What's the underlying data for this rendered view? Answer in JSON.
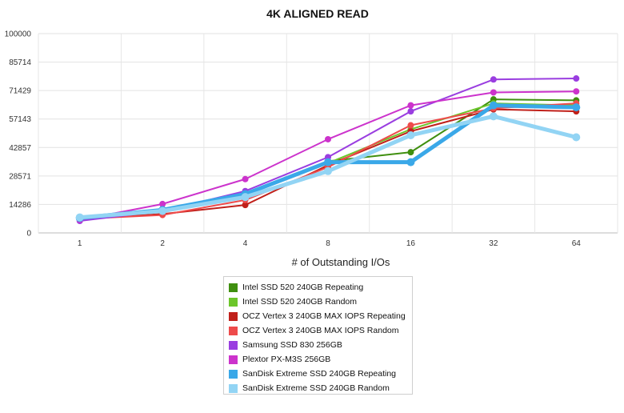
{
  "chart_data": {
    "type": "line",
    "title": "4K ALIGNED READ",
    "xlabel": "# of Outstanding I/Os",
    "ylabel": "",
    "categories": [
      "1",
      "2",
      "4",
      "8",
      "16",
      "32",
      "64"
    ],
    "yticks": [
      "0",
      "14286",
      "28571",
      "42857",
      "57143",
      "71429",
      "85714",
      "100000"
    ],
    "ylim": [
      0,
      100000
    ],
    "grid": true,
    "legend_position": "bottom-center",
    "series": [
      {
        "name": "Intel SSD 520 240GB Repeating",
        "color": "#3f8f0f",
        "width": 2,
        "values": [
          7500,
          11500,
          19000,
          36000,
          40500,
          67000,
          66500
        ]
      },
      {
        "name": "Intel SSD 520 240GB Random",
        "color": "#6cc62a",
        "width": 2,
        "values": [
          7500,
          12000,
          19500,
          35000,
          52000,
          65000,
          64000
        ]
      },
      {
        "name": "OCZ Vertex 3 240GB MAX IOPS Repeating",
        "color": "#c0201a",
        "width": 2,
        "values": [
          7000,
          9500,
          14000,
          34000,
          51000,
          62000,
          61000
        ]
      },
      {
        "name": "OCZ Vertex 3 240GB MAX IOPS Random",
        "color": "#ee4b4b",
        "width": 2,
        "values": [
          7000,
          9000,
          16500,
          33000,
          54000,
          62500,
          65000
        ]
      },
      {
        "name": "Samsung SSD 830 256GB",
        "color": "#9a3ee0",
        "width": 2,
        "values": [
          6000,
          11000,
          21000,
          38000,
          61000,
          77000,
          77500
        ]
      },
      {
        "name": "Plextor PX-M3S 256GB",
        "color": "#cc33cc",
        "width": 2,
        "values": [
          6500,
          14500,
          27000,
          47000,
          64000,
          70500,
          71000
        ]
      },
      {
        "name": "SanDisk Extreme SSD 240GB Repeating",
        "color": "#3aa8e8",
        "width": 5,
        "values": [
          7500,
          11500,
          19500,
          35500,
          35500,
          64000,
          63000
        ]
      },
      {
        "name": "SanDisk Extreme SSD 240GB Random",
        "color": "#92d4f4",
        "width": 5,
        "values": [
          7800,
          11000,
          18000,
          31000,
          49000,
          58500,
          48000
        ]
      }
    ]
  }
}
